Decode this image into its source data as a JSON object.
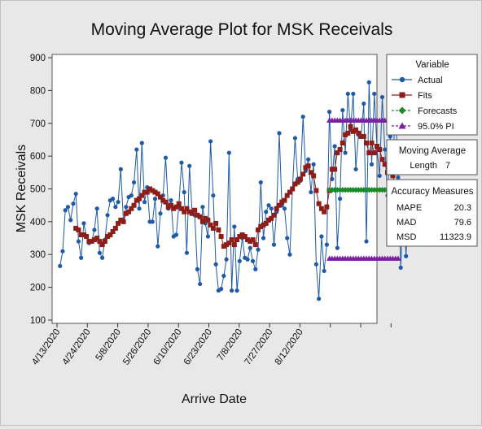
{
  "chart_data": {
    "type": "line",
    "title": "Moving Average Plot for MSK Receivals",
    "xlabel": "Arrive Date",
    "ylabel": "MSK Receivals",
    "ylim": [
      100,
      900
    ],
    "yticks": [
      100,
      200,
      300,
      400,
      500,
      600,
      700,
      800,
      900
    ],
    "xtick_labels": [
      "4/13/2020",
      "4/24/2020",
      "5/8/2020",
      "5/26/2020",
      "6/10/2020",
      "6/23/2020",
      "7/8/2020",
      "7/27/2020",
      "8/12/2020",
      "",
      "",
      ""
    ],
    "xlim_index": [
      -3,
      120
    ],
    "series": [
      {
        "name": "Actual",
        "color": "#1f5aa6",
        "marker": "circle",
        "line": "solid",
        "values": [
          265,
          310,
          435,
          445,
          405,
          455,
          485,
          340,
          290,
          395,
          355,
          335,
          340,
          375,
          440,
          305,
          290,
          345,
          420,
          465,
          470,
          445,
          460,
          560,
          400,
          445,
          475,
          480,
          520,
          620,
          440,
          640,
          460,
          505,
          400,
          400,
          470,
          325,
          425,
          480,
          595,
          440,
          465,
          355,
          360,
          450,
          580,
          490,
          305,
          570,
          430,
          420,
          255,
          210,
          445,
          395,
          355,
          645,
          480,
          270,
          190,
          195,
          235,
          285,
          610,
          190,
          385,
          190,
          280,
          350,
          290,
          285,
          320,
          280,
          255,
          315,
          520,
          350,
          430,
          450,
          440,
          330,
          430,
          670,
          450,
          440,
          350,
          300,
          500,
          655,
          530,
          525,
          720,
          555,
          590,
          490,
          575,
          270,
          165,
          355,
          250,
          330,
          735,
          530,
          630,
          320,
          470,
          740,
          610,
          790,
          680,
          790,
          560,
          665,
          660,
          760,
          340,
          825,
          575,
          790,
          625,
          540,
          780,
          620,
          480,
          660,
          575,
          755,
          535,
          260,
          470,
          295,
          495
        ],
        "x_start": 0
      },
      {
        "name": "Fits",
        "color": "#8c1d18",
        "marker": "square",
        "line": "solid",
        "x_start": 6,
        "values": [
          380,
          375,
          360,
          360,
          355,
          340,
          340,
          345,
          350,
          340,
          330,
          340,
          355,
          360,
          370,
          380,
          395,
          405,
          400,
          425,
          430,
          440,
          450,
          465,
          470,
          480,
          490,
          490,
          500,
          495,
          490,
          485,
          475,
          465,
          460,
          445,
          450,
          440,
          445,
          455,
          440,
          430,
          440,
          430,
          425,
          435,
          420,
          415,
          400,
          410,
          405,
          390,
          380,
          395,
          375,
          355,
          325,
          330,
          335,
          345,
          330,
          345,
          355,
          360,
          355,
          345,
          340,
          345,
          330,
          375,
          385,
          390,
          395,
          405,
          410,
          420,
          440,
          450,
          460,
          465,
          480,
          490,
          500,
          515,
          520,
          530,
          545,
          565,
          570,
          550,
          540,
          495,
          455,
          440,
          430,
          445,
          495,
          560,
          560,
          610,
          620,
          640,
          665,
          670,
          690,
          675,
          680,
          670,
          660,
          660,
          640,
          610,
          640,
          610,
          630,
          620,
          590,
          575,
          550,
          570,
          540,
          505,
          500
        ]
      },
      {
        "name": "Forecasts",
        "color": "#1a8a2a",
        "marker": "diamond",
        "line": "dashed",
        "x_start": 102,
        "values": [
          497,
          497,
          497,
          497,
          497,
          497,
          497,
          497,
          497,
          497,
          497,
          497,
          497,
          497,
          497,
          497,
          497,
          497,
          497,
          497,
          497,
          497,
          497,
          497,
          497,
          497,
          497
        ]
      },
      {
        "name": "95.0% PI",
        "color": "#7d1fa3",
        "marker": "triangle",
        "line": "dashed",
        "x_start": 102,
        "upper": [
          709,
          709,
          709,
          709,
          709,
          709,
          709,
          709,
          709,
          709,
          709,
          709,
          709,
          709,
          709,
          709,
          709,
          709,
          709,
          709,
          709,
          709,
          709,
          709,
          709,
          709,
          709
        ],
        "lower": [
          288,
          288,
          288,
          288,
          288,
          288,
          288,
          288,
          288,
          288,
          288,
          288,
          288,
          288,
          288,
          288,
          288,
          288,
          288,
          288,
          288,
          288,
          288,
          288,
          288,
          288,
          288
        ]
      }
    ]
  },
  "legend": {
    "variable_title": "Variable",
    "items": [
      "Actual",
      "Fits",
      "Forecasts",
      "95.0% PI"
    ]
  },
  "moving_average": {
    "title": "Moving Average",
    "length_label": "Length",
    "length_value": "7"
  },
  "accuracy": {
    "title": "Accuracy Measures",
    "rows": [
      {
        "label": "MAPE",
        "value": "20.3"
      },
      {
        "label": "MAD",
        "value": "79.6"
      },
      {
        "label": "MSD",
        "value": "11323.9"
      }
    ]
  }
}
